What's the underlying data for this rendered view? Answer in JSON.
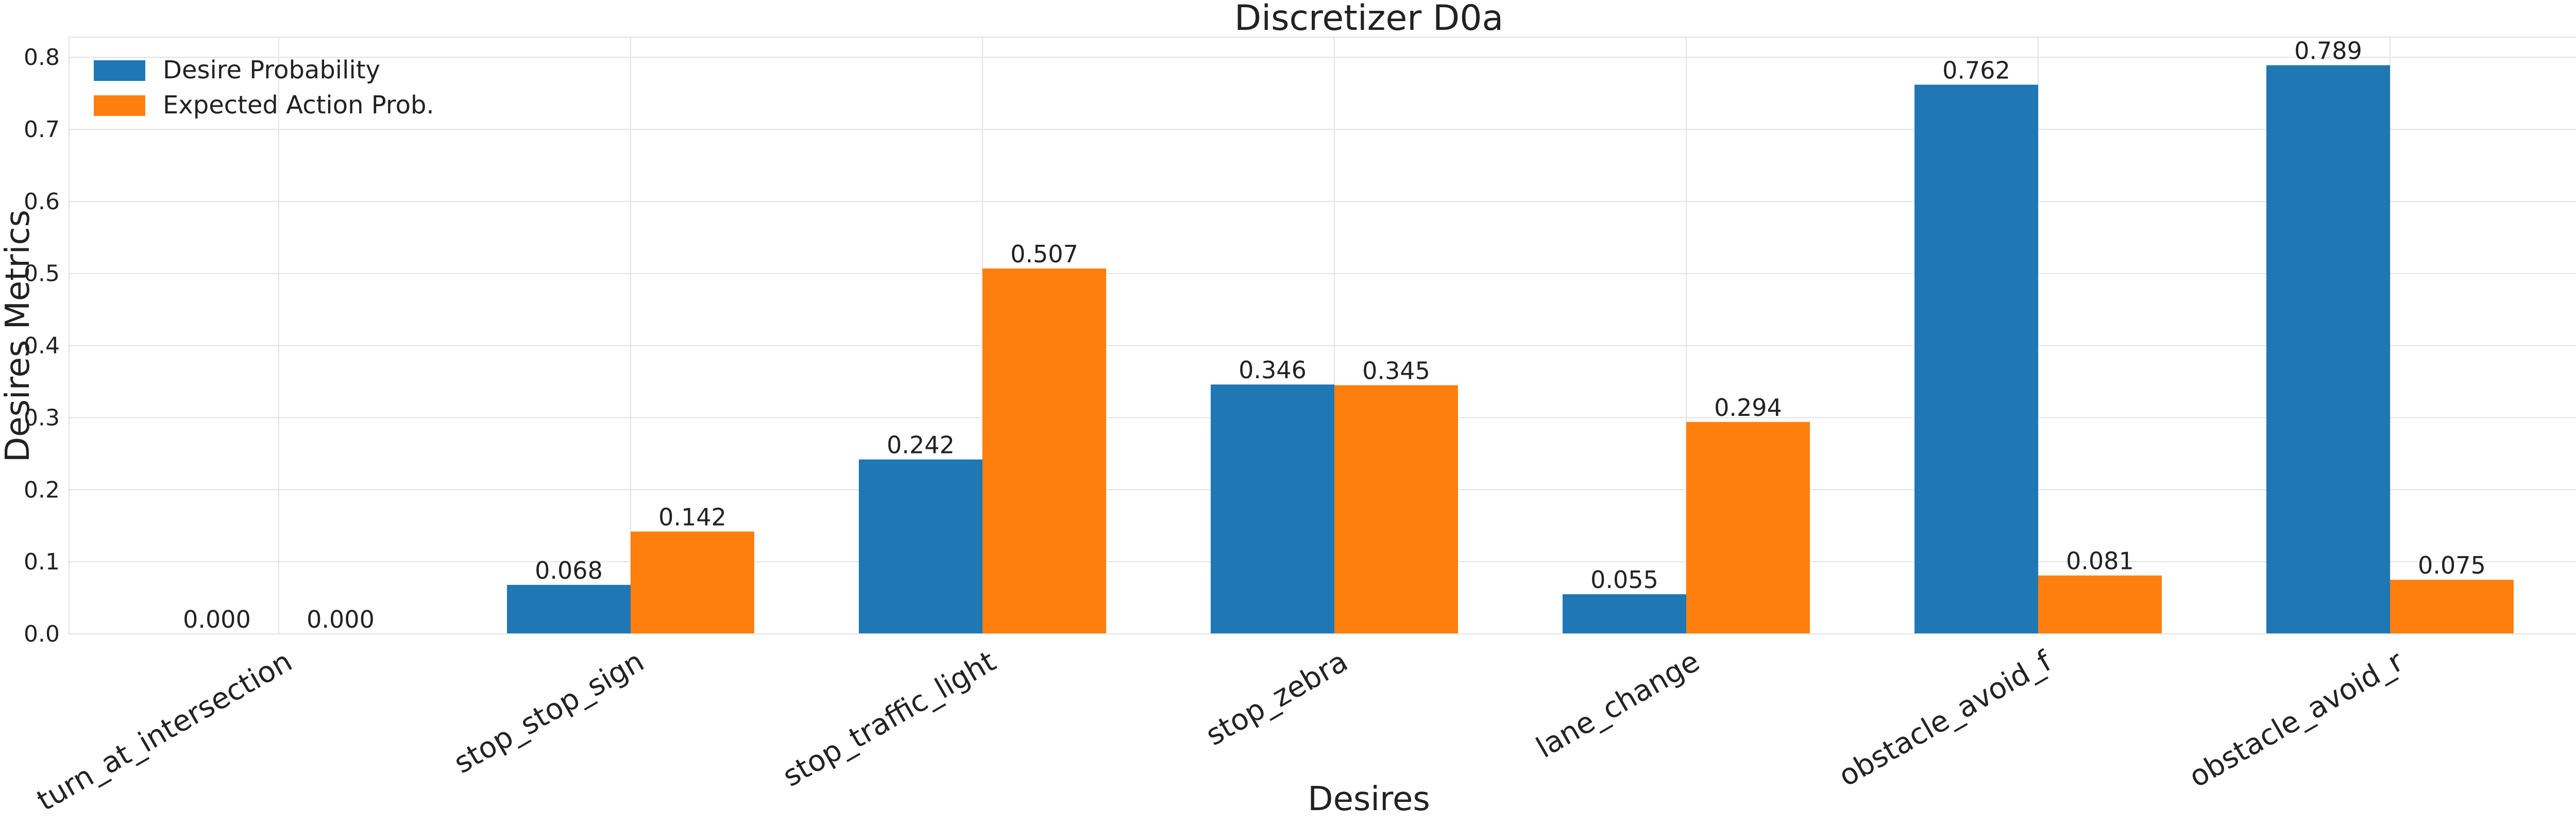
{
  "chart_data": {
    "type": "bar",
    "title": "Discretizer D0a",
    "xlabel": "Desires",
    "ylabel": "Desires Metrics",
    "categories": [
      "turn_at_intersection",
      "stop_stop_sign",
      "stop_traffic_light",
      "stop_zebra",
      "lane_change",
      "obstacle_avoid_f",
      "obstacle_avoid_r"
    ],
    "series": [
      {
        "name": "Desire Probability",
        "color": "#1f77b4",
        "values": [
          0.0,
          0.068,
          0.242,
          0.346,
          0.055,
          0.762,
          0.789
        ],
        "labels": [
          "0.000",
          "0.068",
          "0.242",
          "0.346",
          "0.055",
          "0.762",
          "0.789"
        ]
      },
      {
        "name": "Expected Action Prob.",
        "color": "#ff7f0e",
        "values": [
          0.0,
          0.142,
          0.507,
          0.345,
          0.294,
          0.081,
          0.075
        ],
        "labels": [
          "0.000",
          "0.142",
          "0.507",
          "0.345",
          "0.294",
          "0.081",
          "0.075"
        ]
      }
    ],
    "ylim": [
      0,
      0.828
    ],
    "yticks": [
      0.0,
      0.1,
      0.2,
      0.3,
      0.4,
      0.5,
      0.6,
      0.7,
      0.8
    ],
    "ytick_labels": [
      "0.0",
      "0.1",
      "0.2",
      "0.3",
      "0.4",
      "0.5",
      "0.6",
      "0.7",
      "0.8"
    ],
    "grid": true,
    "legend_position": "top-left"
  }
}
